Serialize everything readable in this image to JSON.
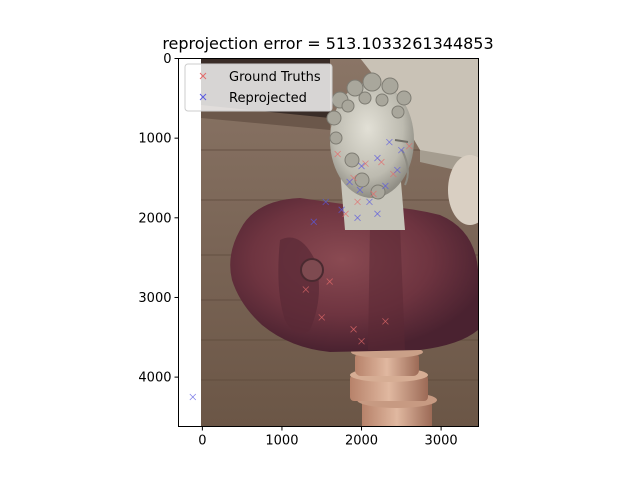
{
  "chart_data": {
    "type": "scatter",
    "title": "reprojection error = 513.1033261344853",
    "xlabel": "",
    "ylabel": "",
    "xlim": [
      -300,
      3470
    ],
    "ylim": [
      4620,
      0
    ],
    "y_inverted": true,
    "grid": false,
    "legend_position": "upper-left",
    "x_ticks": [
      0,
      1000,
      2000,
      3000
    ],
    "x_tick_labels": [
      "0",
      "1000",
      "2000",
      "3000"
    ],
    "y_ticks": [
      0,
      1000,
      2000,
      3000,
      4000
    ],
    "y_tick_labels": [
      "0",
      "1000",
      "2000",
      "3000",
      "4000"
    ],
    "background_image": {
      "description_icon": "marble-bust-photo-icon",
      "extent_x": [
        0,
        3470
      ],
      "extent_y": [
        0,
        4620
      ]
    },
    "series": [
      {
        "name": "Ground Truths",
        "marker": "x",
        "color": "#e36a6a",
        "points": [
          [
            2050,
            1320
          ],
          [
            2250,
            1300
          ],
          [
            1900,
            1500
          ],
          [
            2150,
            1700
          ],
          [
            1950,
            1800
          ],
          [
            1700,
            1200
          ],
          [
            2400,
            1450
          ],
          [
            1800,
            1950
          ],
          [
            2600,
            1100
          ],
          [
            1500,
            3250
          ],
          [
            1900,
            3400
          ],
          [
            2300,
            3300
          ],
          [
            1300,
            2900
          ],
          [
            1600,
            2800
          ],
          [
            2000,
            3550
          ]
        ]
      },
      {
        "name": "Reprojected",
        "marker": "x",
        "color": "#5a5ae0",
        "points": [
          [
            -120,
            4250
          ],
          [
            2000,
            1350
          ],
          [
            2200,
            1250
          ],
          [
            2350,
            1050
          ],
          [
            1850,
            1550
          ],
          [
            2100,
            1800
          ],
          [
            1980,
            1650
          ],
          [
            2450,
            1400
          ],
          [
            1750,
            1900
          ],
          [
            1950,
            2000
          ],
          [
            2200,
            1950
          ],
          [
            1550,
            1800
          ],
          [
            1400,
            2050
          ],
          [
            2500,
            1150
          ],
          [
            2300,
            1600
          ]
        ]
      }
    ]
  }
}
